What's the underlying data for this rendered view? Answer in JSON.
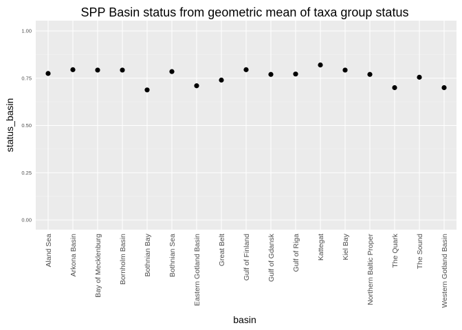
{
  "chart_data": {
    "type": "scatter",
    "title": "SPP Basin status from geometric mean of taxa group status",
    "xlabel": "basin",
    "ylabel": "status_basin",
    "ylim": [
      0,
      1
    ],
    "yticks": [
      "0.00",
      "0.25",
      "0.50",
      "0.75",
      "1.00"
    ],
    "ytick_values": [
      0,
      0.25,
      0.5,
      0.75,
      1.0
    ],
    "grid": true,
    "categories": [
      "Aland Sea",
      "Arkona Basin",
      "Bay of Mecklenburg",
      "Bornholm Basin",
      "Bothnian Bay",
      "Bothnian Sea",
      "Eastern Gotland Basin",
      "Great Belt",
      "Gulf of Finland",
      "Gulf of Gdansk",
      "Gulf of Riga",
      "Kattegat",
      "Kiel Bay",
      "Northern Baltic Proper",
      "The Quark",
      "The Sound",
      "Western Gotland Basin"
    ],
    "values": [
      0.775,
      0.795,
      0.793,
      0.793,
      0.688,
      0.785,
      0.71,
      0.74,
      0.795,
      0.77,
      0.772,
      0.82,
      0.793,
      0.77,
      0.7,
      0.755,
      0.7
    ]
  },
  "colors": {
    "panel": "#ebebeb",
    "grid_major": "#ffffff",
    "grid_minor": "#f4f4f4",
    "point": "#000000"
  }
}
